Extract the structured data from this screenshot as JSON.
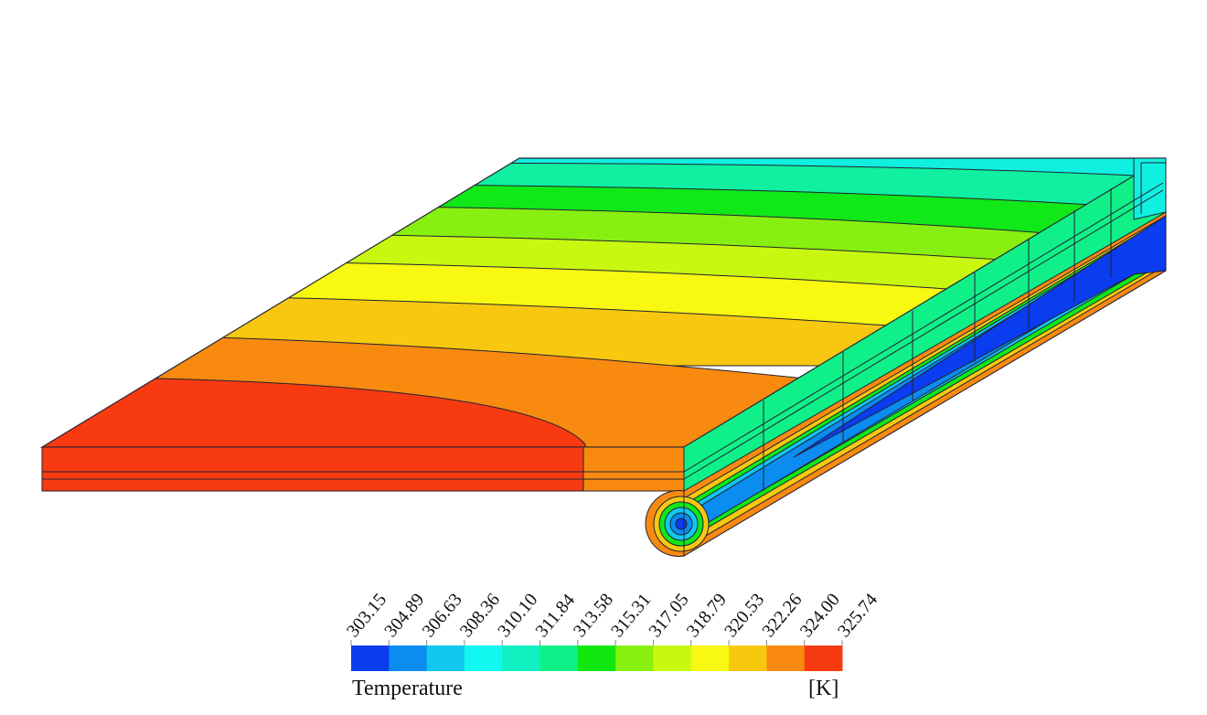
{
  "legend": {
    "title": "Temperature",
    "unit": "[K]",
    "ticks": [
      "303.15",
      "304.89",
      "306.63",
      "308.36",
      "310.10",
      "311.84",
      "313.58",
      "315.31",
      "317.05",
      "318.79",
      "320.53",
      "322.26",
      "324.00",
      "325.74"
    ],
    "colors": [
      "#0a3cf0",
      "#0a8cf0",
      "#10c8f0",
      "#10f8f0",
      "#10f0c0",
      "#10f088",
      "#10e810",
      "#88f010",
      "#c8f810",
      "#f8f810",
      "#f8c810",
      "#f88a10",
      "#f83a10"
    ]
  }
}
